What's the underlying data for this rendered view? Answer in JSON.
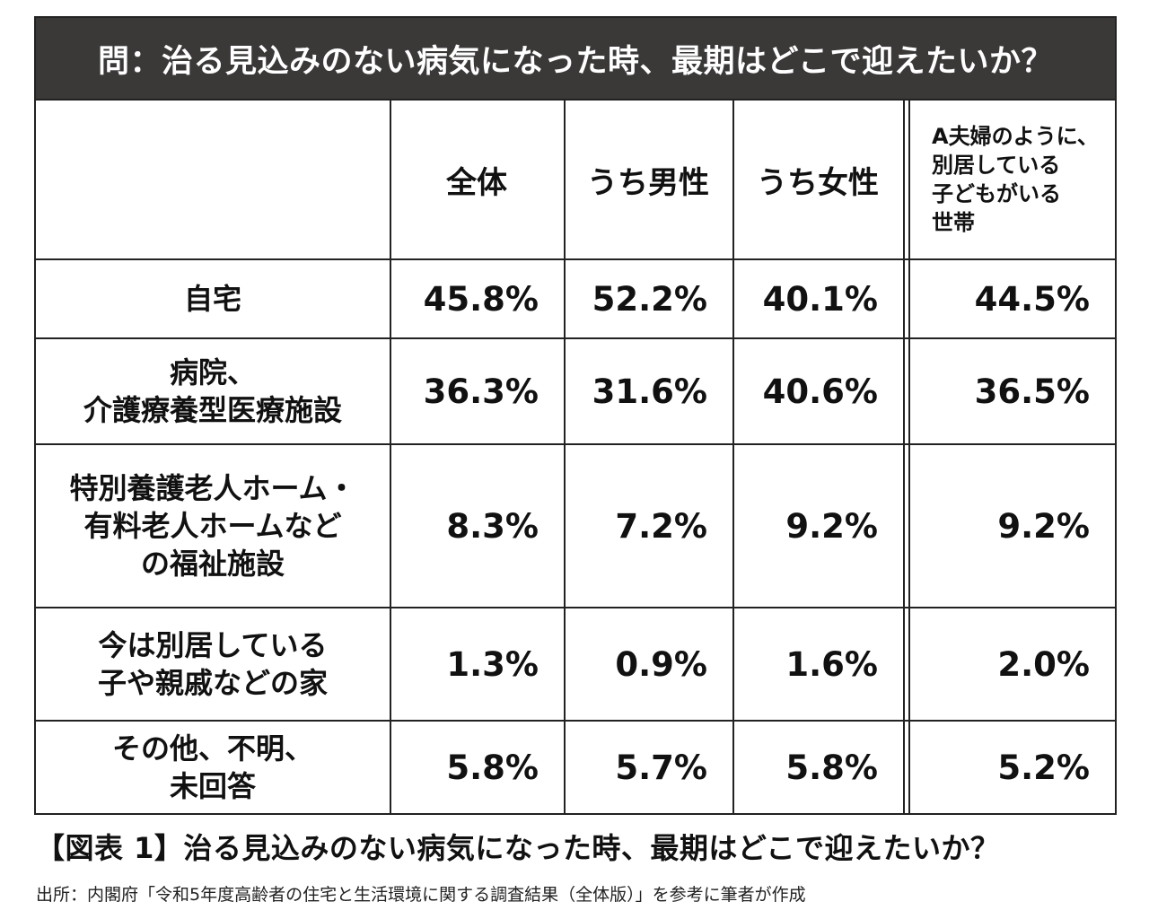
{
  "title": "問：治る見込みのない病気になった時、最期はどこで迎えたいか？",
  "caption": "【図表 1】治る見込みのない病気になった時、最期はどこで迎えたいか？",
  "source": "出所：内閣府「令和5年度高齢者の住宅と生活環境に関する調査結果（全体版）」を参考に筆者が作成",
  "chart_data": {
    "type": "table",
    "columns": [
      "全体",
      "うち男性",
      "うち女性",
      "A夫婦のように、別居している子どもがいる世帯"
    ],
    "column_header_lines": {
      "col4": [
        "A夫婦のように、",
        "別居している",
        "子どもがいる",
        "世帯"
      ]
    },
    "rows": [
      {
        "label_lines": [
          "自宅"
        ],
        "values": [
          "45.8%",
          "52.2%",
          "40.1%",
          "44.5%"
        ]
      },
      {
        "label_lines": [
          "病院、",
          "介護療養型医療施設"
        ],
        "values": [
          "36.3%",
          "31.6%",
          "40.6%",
          "36.5%"
        ]
      },
      {
        "label_lines": [
          "特別養護老人ホーム・",
          "有料老人ホームなど",
          "の福祉施設"
        ],
        "values": [
          "8.3%",
          "7.2%",
          "9.2%",
          "9.2%"
        ]
      },
      {
        "label_lines": [
          "今は別居している",
          "子や親戚などの家"
        ],
        "values": [
          "1.3%",
          "0.9%",
          "1.6%",
          "2.0%"
        ]
      },
      {
        "label_lines": [
          "その他、不明、",
          "未回答"
        ],
        "values": [
          "5.8%",
          "5.7%",
          "5.8%",
          "5.2%"
        ]
      }
    ]
  }
}
